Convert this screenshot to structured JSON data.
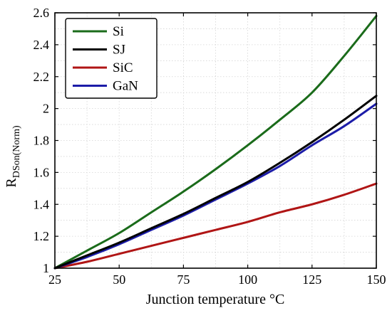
{
  "chart_data": {
    "type": "line",
    "xlabel": "Junction temperature °C",
    "ylabel": {
      "main": "R",
      "sub": "DSon(Norm)"
    },
    "xlim": [
      25,
      150
    ],
    "ylim": [
      1,
      2.6
    ],
    "xticks": [
      25,
      50,
      75,
      100,
      125,
      150
    ],
    "yticks": [
      1,
      1.2,
      1.4,
      1.6,
      1.8,
      2,
      2.2,
      2.4,
      2.6
    ],
    "ytick_labels": [
      "1",
      "1.2",
      "1.4",
      "1.6",
      "1.8",
      "2",
      "2.2",
      "2.4",
      "2.6"
    ],
    "grid": true,
    "legend_position": "top-left",
    "x": [
      25,
      37.5,
      50,
      62.5,
      75,
      87.5,
      100,
      112.5,
      125,
      137.5,
      150
    ],
    "series": [
      {
        "name": "Si",
        "color": "#1a6b1a",
        "values": [
          1.0,
          1.11,
          1.22,
          1.35,
          1.48,
          1.62,
          1.77,
          1.93,
          2.1,
          2.33,
          2.58
        ]
      },
      {
        "name": "SJ",
        "color": "#000000",
        "values": [
          1.0,
          1.08,
          1.16,
          1.25,
          1.34,
          1.44,
          1.54,
          1.66,
          1.79,
          1.93,
          2.08
        ]
      },
      {
        "name": "SiC",
        "color": "#b01515",
        "values": [
          1.0,
          1.04,
          1.09,
          1.14,
          1.19,
          1.24,
          1.29,
          1.35,
          1.4,
          1.46,
          1.53
        ]
      },
      {
        "name": "GaN",
        "color": "#1c1ca8",
        "values": [
          1.0,
          1.07,
          1.15,
          1.24,
          1.33,
          1.43,
          1.53,
          1.64,
          1.77,
          1.89,
          2.03
        ]
      }
    ]
  }
}
